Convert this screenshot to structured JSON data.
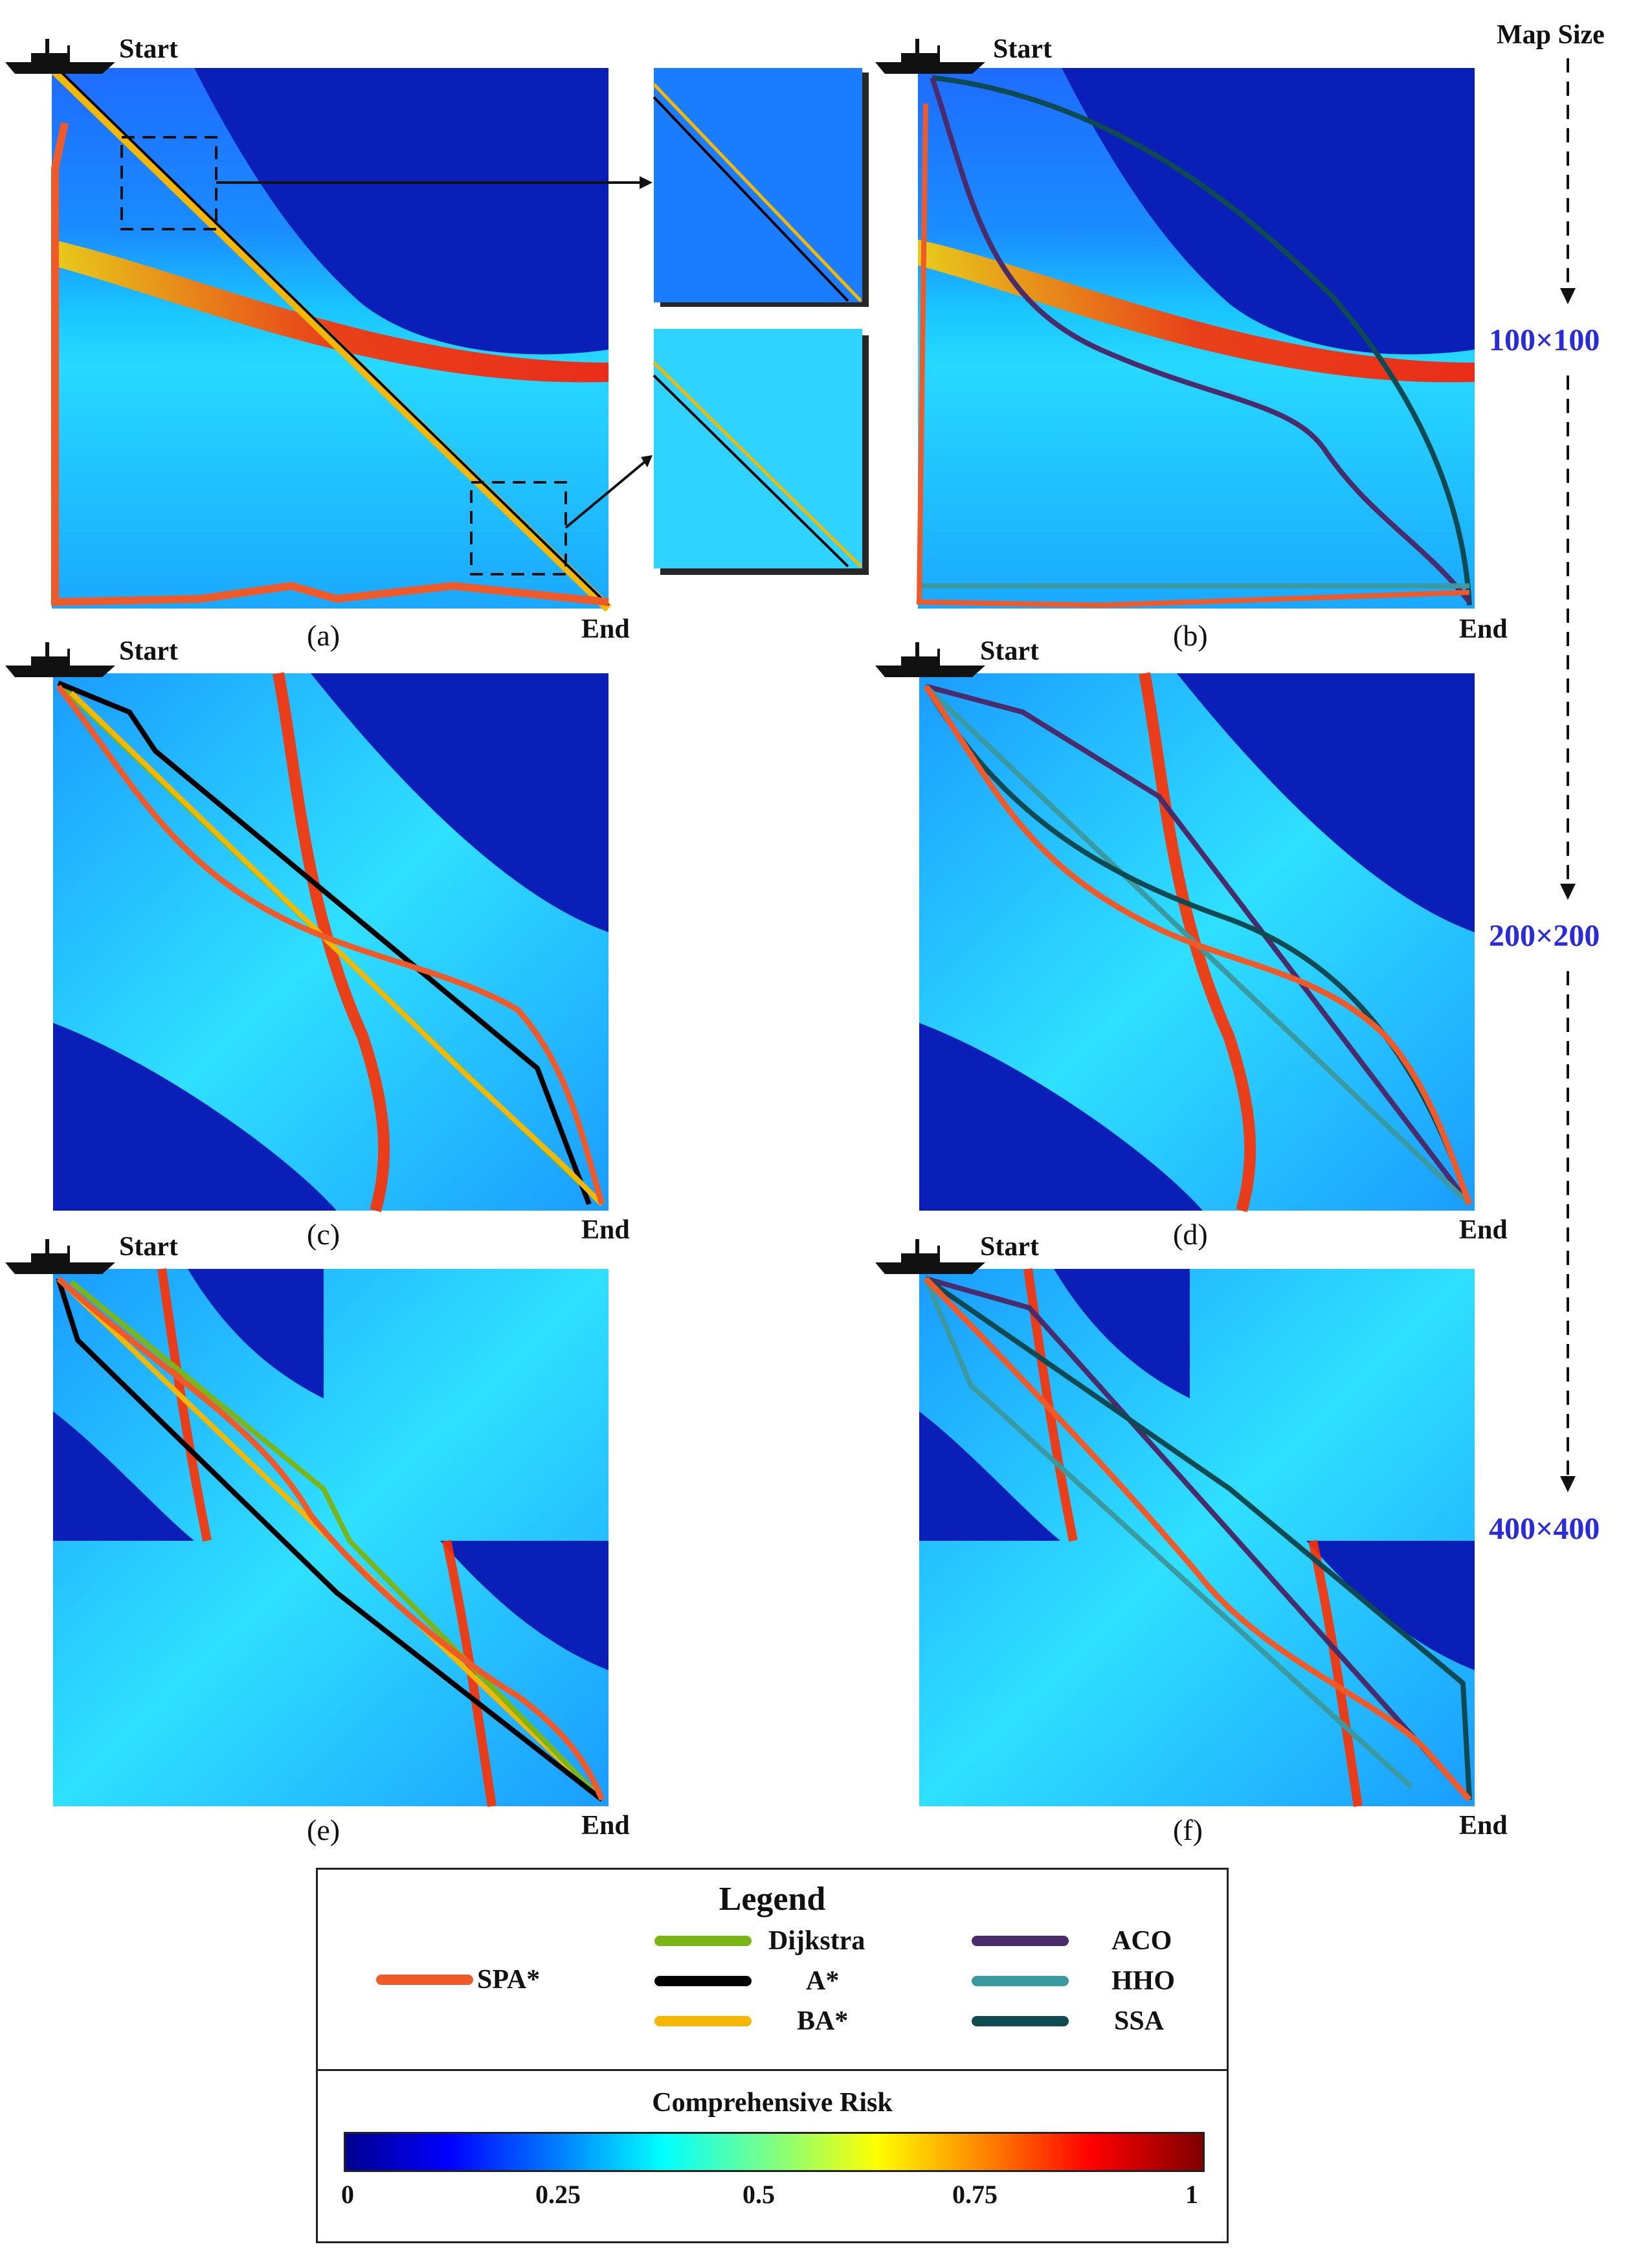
{
  "panels": [
    {
      "caption": "(a)",
      "start": "Start",
      "end": "End"
    },
    {
      "caption": "(b)",
      "start": "Start",
      "end": "End"
    },
    {
      "caption": "(c)",
      "start": "Start",
      "end": "End"
    },
    {
      "caption": "(d)",
      "start": "Start",
      "end": "End"
    },
    {
      "caption": "(e)",
      "start": "Start",
      "end": "End"
    },
    {
      "caption": "(f)",
      "start": "Start",
      "end": "End"
    }
  ],
  "map_size": {
    "title": "Map Size",
    "levels": [
      "100×100",
      "200×200",
      "400×400"
    ]
  },
  "legend": {
    "title": "Legend",
    "items": [
      {
        "name": "SPA*",
        "color": "#f05a28"
      },
      {
        "name": "Dijkstra",
        "color": "#7cb518"
      },
      {
        "name": "A*",
        "color": "#000000"
      },
      {
        "name": "BA*",
        "color": "#f5b800"
      },
      {
        "name": "ACO",
        "color": "#4a2c6b"
      },
      {
        "name": "HHO",
        "color": "#3a9aa0"
      },
      {
        "name": "SSA",
        "color": "#0e4a52"
      }
    ]
  },
  "colorbar": {
    "title": "Comprehensive Risk",
    "ticks": [
      "0",
      "0.25",
      "0.5",
      "0.75",
      "1"
    ]
  }
}
